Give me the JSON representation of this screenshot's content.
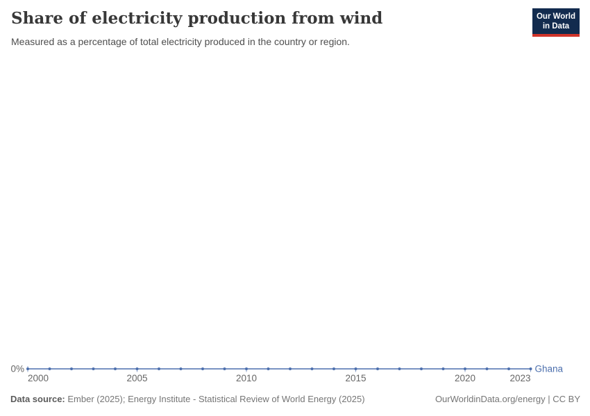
{
  "header": {
    "title": "Share of electricity production from wind",
    "subtitle": "Measured as a percentage of total electricity produced in the country or region.",
    "logo": {
      "line1": "Our World",
      "line2": "in Data",
      "bg_color": "#122b4e",
      "accent_color": "#d0342a",
      "text_color": "#ffffff"
    }
  },
  "chart_data": {
    "type": "line",
    "title": "Share of electricity production from wind",
    "xlabel": "",
    "ylabel": "",
    "x": [
      2000,
      2001,
      2002,
      2003,
      2004,
      2005,
      2006,
      2007,
      2008,
      2009,
      2010,
      2011,
      2012,
      2013,
      2014,
      2015,
      2016,
      2017,
      2018,
      2019,
      2020,
      2021,
      2022,
      2023
    ],
    "series": [
      {
        "name": "Ghana",
        "color": "#4c6fad",
        "values": [
          0,
          0,
          0,
          0,
          0,
          0,
          0,
          0,
          0,
          0,
          0,
          0,
          0,
          0,
          0,
          0,
          0,
          0,
          0,
          0,
          0,
          0,
          0,
          0
        ]
      }
    ],
    "x_range": [
      2000,
      2023
    ],
    "x_ticks": [
      2000,
      2005,
      2010,
      2015,
      2020,
      2023
    ],
    "y_axis": {
      "range": [
        0,
        0
      ],
      "tick_label": "0%",
      "unit": "%"
    },
    "grid": false,
    "legend_position": "end-of-line",
    "tick_color": "#8ba0c8",
    "tick_label_color": "#666666"
  },
  "footer": {
    "source_label": "Data source:",
    "source_text": " Ember (2025); Energy Institute - Statistical Review of World Energy (2025)",
    "link_text": "OurWorldinData.org/energy | CC BY"
  }
}
